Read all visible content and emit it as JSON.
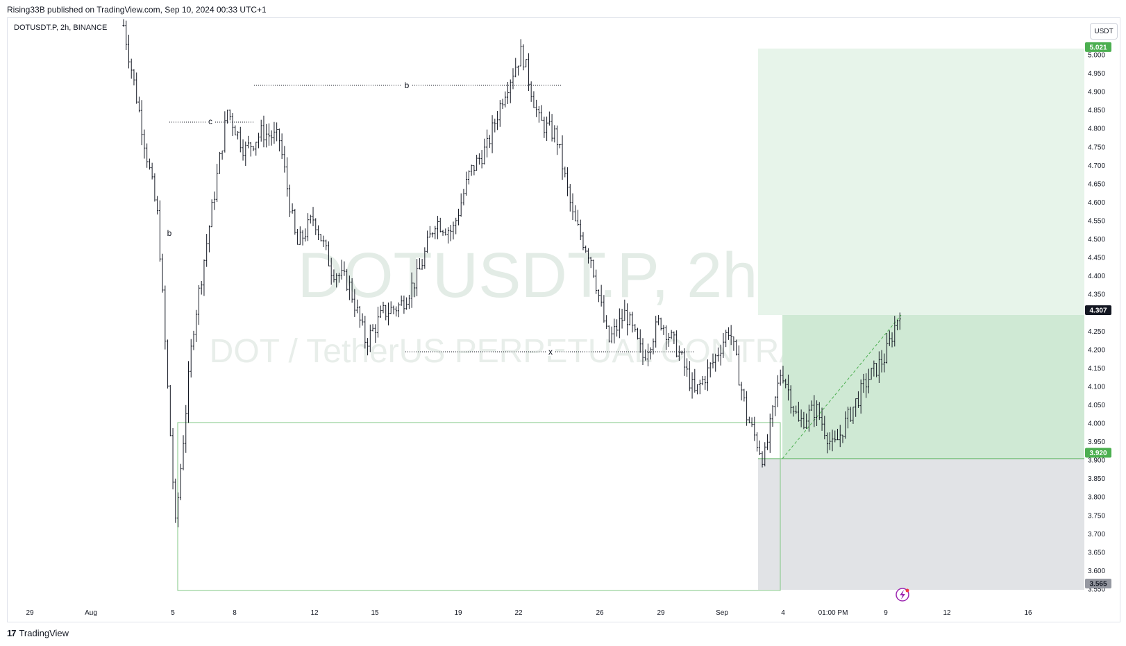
{
  "header": {
    "publisher": "Rising33B published on TradingView.com, Sep 10, 2024 00:33 UTC+1"
  },
  "symbol_label": "DOTUSDT.P, 2h, BINANCE",
  "currency_button": "USDT",
  "watermark": {
    "symbol": "DOTUSDT.P, 2h",
    "description": "DOT / TetherUS PERPETUAL CONTRACT"
  },
  "footer": {
    "brand": "TradingView",
    "logo": "17"
  },
  "colors": {
    "candle": "#131722",
    "profit_zone": "#cfe9d4",
    "target_zone": "#e7f4ea",
    "stop_zone": "#e1e3e6",
    "accent_green": "#4caf50",
    "price_tag": "#131722"
  },
  "chart_data": {
    "type": "candlestick",
    "ylim": [
      3.55,
      5.04
    ],
    "y_ticks": [
      "5.000",
      "4.950",
      "4.900",
      "4.850",
      "4.800",
      "4.750",
      "4.700",
      "4.650",
      "4.600",
      "4.550",
      "4.500",
      "4.450",
      "4.400",
      "4.350",
      "4.300",
      "4.250",
      "4.200",
      "4.150",
      "4.100",
      "4.050",
      "4.000",
      "3.950",
      "3.900",
      "3.850",
      "3.800",
      "3.750",
      "3.700",
      "3.650",
      "3.600",
      "3.550"
    ],
    "x_ticks": [
      "29",
      "Aug",
      "5",
      "8",
      "12",
      "15",
      "19",
      "22",
      "26",
      "29",
      "Sep",
      "4",
      "01:00 PM",
      "9",
      "12",
      "16"
    ],
    "price_labels": [
      {
        "value": "5.021",
        "kind": "target"
      },
      {
        "value": "4.307",
        "kind": "last"
      },
      {
        "value": "3.920",
        "kind": "entry"
      },
      {
        "value": "3.565",
        "kind": "stop"
      }
    ],
    "annotations": [
      "c",
      "b",
      "b",
      "x"
    ],
    "position": {
      "entry": 3.92,
      "target": 5.021,
      "stop": 3.565
    },
    "swing_points": [
      {
        "date": "Jul 31",
        "price": 5.08
      },
      {
        "date": "Aug 2",
        "price": 4.82
      },
      {
        "date": "Aug 3",
        "price": 4.55
      },
      {
        "date": "Aug 5",
        "price": 3.72
      },
      {
        "date": "Aug 6",
        "price": 4.25
      },
      {
        "date": "Aug 7",
        "price": 4.55
      },
      {
        "date": "Aug 8",
        "price": 4.85
      },
      {
        "date": "Aug 9",
        "price": 4.74
      },
      {
        "date": "Aug 10",
        "price": 4.79
      },
      {
        "date": "Aug 11",
        "price": 4.77
      },
      {
        "date": "Aug 12",
        "price": 4.48
      },
      {
        "date": "Aug 13",
        "price": 4.56
      },
      {
        "date": "Aug 14",
        "price": 4.42
      },
      {
        "date": "Aug 15",
        "price": 4.38
      },
      {
        "date": "Aug 16",
        "price": 4.22
      },
      {
        "date": "Aug 17",
        "price": 4.3
      },
      {
        "date": "Aug 18",
        "price": 4.32
      },
      {
        "date": "Aug 19",
        "price": 4.4
      },
      {
        "date": "Aug 20",
        "price": 4.55
      },
      {
        "date": "Aug 21",
        "price": 4.52
      },
      {
        "date": "Aug 22",
        "price": 4.68
      },
      {
        "date": "Aug 23",
        "price": 4.75
      },
      {
        "date": "Aug 24",
        "price": 4.9
      },
      {
        "date": "Aug 24b",
        "price": 5.01
      },
      {
        "date": "Aug 25",
        "price": 4.82
      },
      {
        "date": "Aug 26",
        "price": 4.78
      },
      {
        "date": "Aug 27",
        "price": 4.55
      },
      {
        "date": "Aug 28",
        "price": 4.45
      },
      {
        "date": "Aug 28b",
        "price": 4.22
      },
      {
        "date": "Aug 29",
        "price": 4.3
      },
      {
        "date": "Aug 30",
        "price": 4.18
      },
      {
        "date": "Aug 31",
        "price": 4.28
      },
      {
        "date": "Sep 1",
        "price": 4.2
      },
      {
        "date": "Sep 2",
        "price": 4.08
      },
      {
        "date": "Sep 3",
        "price": 4.16
      },
      {
        "date": "Sep 3b",
        "price": 4.26
      },
      {
        "date": "Sep 4",
        "price": 4.02
      },
      {
        "date": "Sep 4b",
        "price": 3.9
      },
      {
        "date": "Sep 5",
        "price": 4.15
      },
      {
        "date": "Sep 6",
        "price": 4.0
      },
      {
        "date": "Sep 7",
        "price": 4.04
      },
      {
        "date": "Sep 7b",
        "price": 3.93
      },
      {
        "date": "Sep 8",
        "price": 4.03
      },
      {
        "date": "Sep 8b",
        "price": 4.12
      },
      {
        "date": "Sep 9",
        "price": 4.18
      },
      {
        "date": "Sep 9b",
        "price": 4.33
      }
    ]
  }
}
